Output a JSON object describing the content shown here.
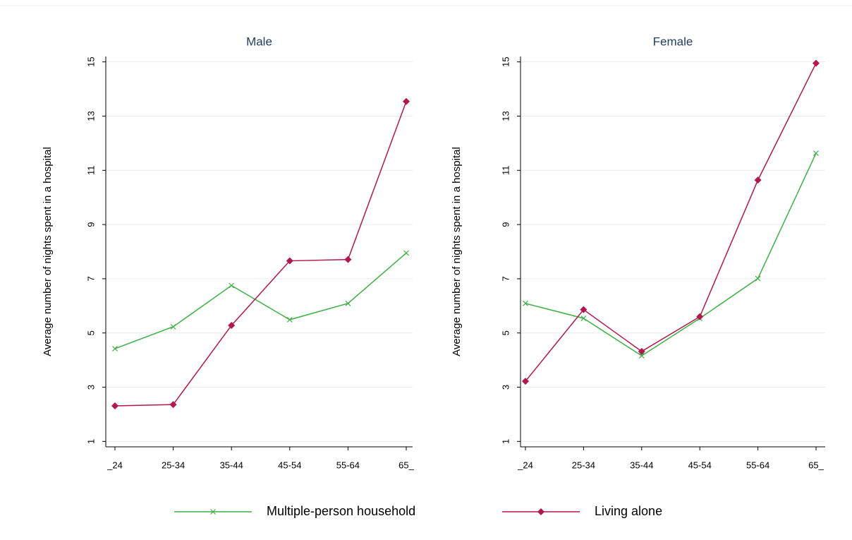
{
  "chart_data": [
    {
      "type": "line",
      "title": "Male",
      "ylabel": "Average number of nights spent in a hospital",
      "categories": [
        "_24",
        "25-34",
        "35-44",
        "45-54",
        "55-64",
        "65_"
      ],
      "series": [
        {
          "name": "Multiple-person household",
          "color": "#3cb043",
          "marker": "x",
          "values": [
            4.42,
            5.23,
            6.75,
            5.49,
            6.09,
            7.95
          ]
        },
        {
          "name": "Living alone",
          "color": "#b5174b",
          "marker": "diamond",
          "values": [
            2.31,
            2.36,
            5.28,
            7.66,
            7.71,
            13.54
          ]
        }
      ],
      "ylim": [
        0.8,
        15.2
      ],
      "yticks": [
        1,
        3,
        5,
        7,
        9,
        11,
        13,
        15
      ],
      "grid": true
    },
    {
      "type": "line",
      "title": "Female",
      "ylabel": "Average number of nights spent in a hospital",
      "categories": [
        "_24",
        "25-34",
        "35-44",
        "45-54",
        "55-64",
        "65_"
      ],
      "series": [
        {
          "color": "#3cb043",
          "marker": "x",
          "values": [
            6.09,
            5.54,
            4.16,
            5.54,
            7.01,
            11.63
          ]
        },
        {
          "color": "#b5174b",
          "marker": "diamond",
          "values": [
            3.22,
            5.86,
            4.32,
            5.6,
            10.64,
            14.95
          ]
        }
      ],
      "ylim": [
        0.8,
        15.2
      ],
      "yticks": [
        1,
        3,
        5,
        7,
        9,
        11,
        13,
        15
      ],
      "grid": true
    }
  ]
}
